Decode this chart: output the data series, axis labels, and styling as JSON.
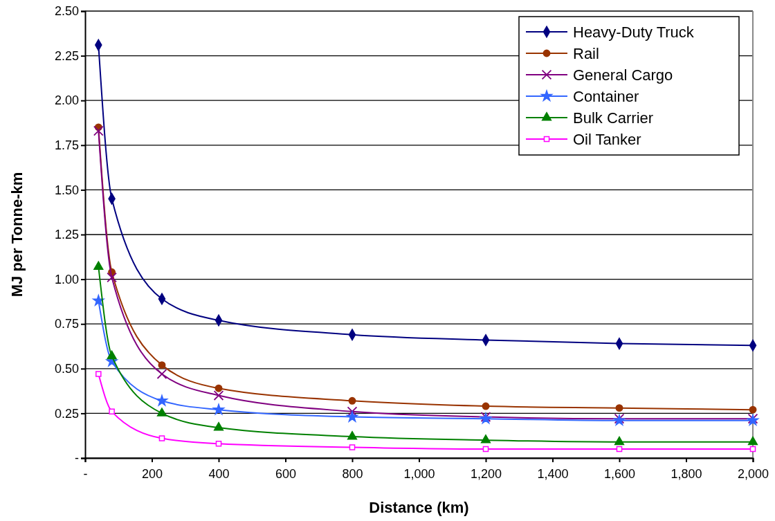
{
  "chart_data": {
    "type": "line",
    "xlabel": "Distance (km)",
    "ylabel": "MJ per Tonne-km",
    "x": [
      40,
      80,
      230,
      400,
      800,
      1200,
      1600,
      2000
    ],
    "xlim": [
      0,
      2000
    ],
    "xticks": [
      {
        "value": 0,
        "label": "-"
      },
      200,
      400,
      600,
      800,
      {
        "value": 1000,
        "label": "1,000"
      },
      {
        "value": 1200,
        "label": "1,200"
      },
      {
        "value": 1400,
        "label": "1,400"
      },
      {
        "value": 1600,
        "label": "1,600"
      },
      {
        "value": 1800,
        "label": "1,800"
      },
      {
        "value": 2000,
        "label": "2,000"
      }
    ],
    "ylim": [
      0,
      2.5
    ],
    "yticks": [
      {
        "value": 0,
        "label": "-"
      },
      {
        "value": 0.25,
        "label": "0.25"
      },
      {
        "value": 0.5,
        "label": "0.50"
      },
      {
        "value": 0.75,
        "label": "0.75"
      },
      {
        "value": 1,
        "label": "1.00"
      },
      {
        "value": 1.25,
        "label": "1.25"
      },
      {
        "value": 1.5,
        "label": "1.50"
      },
      {
        "value": 1.75,
        "label": "1.75"
      },
      {
        "value": 2,
        "label": "2.00"
      },
      {
        "value": 2.25,
        "label": "2.25"
      },
      {
        "value": 2.5,
        "label": "2.50"
      }
    ],
    "grid": "y",
    "legend": "top right",
    "line_style": "solid",
    "series": [
      {
        "name": "Heavy-Duty Truck",
        "color": "#000080",
        "marker": "diamond",
        "values": [
          2.31,
          1.45,
          0.89,
          0.77,
          0.69,
          0.66,
          0.64,
          0.63
        ]
      },
      {
        "name": "Rail",
        "color": "#993300",
        "marker": "circle",
        "values": [
          1.85,
          1.04,
          0.52,
          0.39,
          0.32,
          0.29,
          0.28,
          0.27
        ]
      },
      {
        "name": "General Cargo",
        "color": "#800080",
        "marker": "cross",
        "values": [
          1.83,
          1.01,
          0.47,
          0.35,
          0.26,
          0.23,
          0.22,
          0.22
        ]
      },
      {
        "name": "Container",
        "color": "#3366ff",
        "marker": "star",
        "values": [
          0.88,
          0.54,
          0.32,
          0.27,
          0.23,
          0.22,
          0.21,
          0.21
        ]
      },
      {
        "name": "Bulk Carrier",
        "color": "#008000",
        "marker": "triangle",
        "values": [
          1.07,
          0.57,
          0.25,
          0.17,
          0.12,
          0.1,
          0.09,
          0.09
        ]
      },
      {
        "name": "Oil Tanker",
        "color": "#ff00ff",
        "marker": "square",
        "values": [
          0.47,
          0.26,
          0.11,
          0.08,
          0.06,
          0.05,
          0.05,
          0.05
        ]
      }
    ]
  }
}
